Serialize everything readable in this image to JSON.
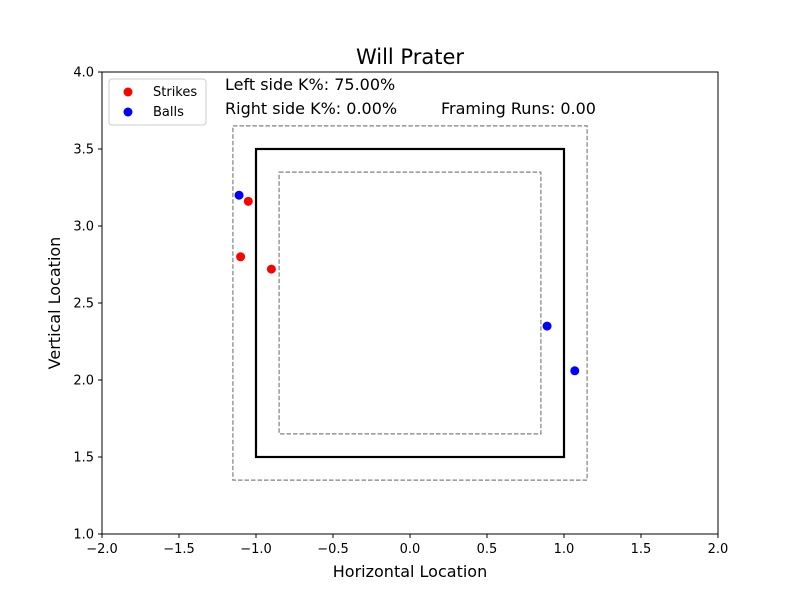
{
  "chart_data": {
    "type": "scatter",
    "title": "Will Prater",
    "xlabel": "Horizontal Location",
    "ylabel": "Vertical Location",
    "xlim": [
      -2.0,
      2.0
    ],
    "ylim": [
      1.0,
      4.0
    ],
    "xticks": [
      "−2.0",
      "−1.5",
      "−1.0",
      "−0.5",
      "0.0",
      "0.5",
      "1.0",
      "1.5",
      "2.0"
    ],
    "xtick_values": [
      -2.0,
      -1.5,
      -1.0,
      -0.5,
      0.0,
      0.5,
      1.0,
      1.5,
      2.0
    ],
    "yticks": [
      "1.0",
      "1.5",
      "2.0",
      "2.5",
      "3.0",
      "3.5",
      "4.0"
    ],
    "ytick_values": [
      1.0,
      1.5,
      2.0,
      2.5,
      3.0,
      3.5,
      4.0
    ],
    "grid": false,
    "legend_position": "top-left",
    "series": [
      {
        "name": "Strikes",
        "color": "#ff0000",
        "points": [
          {
            "x": -1.05,
            "y": 3.16
          },
          {
            "x": -1.1,
            "y": 2.8
          },
          {
            "x": -0.9,
            "y": 2.72
          }
        ]
      },
      {
        "name": "Balls",
        "color": "#0000ff",
        "points": [
          {
            "x": -1.11,
            "y": 3.2
          },
          {
            "x": 0.89,
            "y": 2.35
          },
          {
            "x": 1.07,
            "y": 2.06
          }
        ]
      }
    ],
    "zones": [
      {
        "name": "outer-zone",
        "x": [
          -1.15,
          1.15
        ],
        "y": [
          1.35,
          3.65
        ],
        "style": "dashed",
        "color": "#808080"
      },
      {
        "name": "strike-zone",
        "x": [
          -1.0,
          1.0
        ],
        "y": [
          1.5,
          3.5
        ],
        "style": "solid",
        "color": "#000000"
      },
      {
        "name": "inner-zone",
        "x": [
          -0.85,
          0.85
        ],
        "y": [
          1.65,
          3.35
        ],
        "style": "dashed",
        "color": "#808080"
      }
    ],
    "annotations": {
      "left_k": "Left side K%: 75.00%",
      "right_k": "Right side K%: 0.00%",
      "framing_runs": "Framing Runs: 0.00"
    }
  }
}
